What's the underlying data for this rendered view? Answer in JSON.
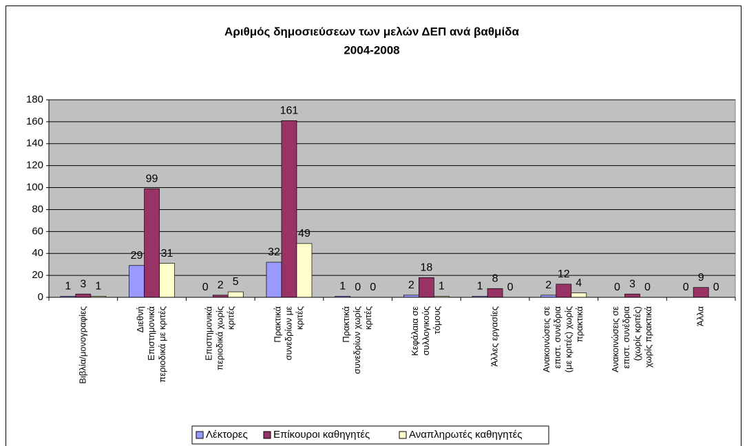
{
  "chart_data": {
    "type": "bar",
    "title": [
      "Αριθμός δημοσιεύσεων των μελών ΔΕΠ ανά βαθμίδα",
      "2004-2008"
    ],
    "categories": [
      [
        "Βιβλία/μονογραφίες"
      ],
      [
        "Διεθνή",
        "Επιστημονικά",
        "περιοδικά με κριτές"
      ],
      [
        "Επιστημονικά",
        "περιοδικά χωρίς",
        "κριτές"
      ],
      [
        "Πρακτικά",
        "συνεδρίων με",
        "κριτές"
      ],
      [
        "Πρακτικά",
        "συνεδρίων χωρίς",
        "κριτές"
      ],
      [
        "Κεφάλαια σε",
        "συλλογικούς",
        "τόμους"
      ],
      [
        "Άλλες εργασίες"
      ],
      [
        "Ανακοινώσεις σε",
        "επιστ. συνέδρια",
        "(με κριτές) χωρίς",
        "πρακτικά"
      ],
      [
        "Ανακοινώσεις σε",
        "επιστ. συνέδρια",
        "(χωρίς κριτές)",
        "χωρίς πρακτικά"
      ],
      [
        "Άλλα"
      ]
    ],
    "series": [
      {
        "name": "Λέκτορες",
        "color": "#9999ff",
        "values": [
          1,
          29,
          0,
          32,
          1,
          2,
          1,
          2,
          0,
          0
        ]
      },
      {
        "name": "Επίκουροι καθηγητές",
        "color": "#993366",
        "values": [
          3,
          99,
          2,
          161,
          0,
          18,
          8,
          12,
          3,
          9
        ]
      },
      {
        "name": "Αναπληρωτές καθηγητές",
        "color": "#ffffcc",
        "values": [
          1,
          31,
          5,
          49,
          0,
          1,
          0,
          4,
          0,
          0
        ]
      }
    ],
    "ylim": [
      0,
      180
    ],
    "yticks": [
      0,
      20,
      40,
      60,
      80,
      100,
      120,
      140,
      160,
      180
    ],
    "grid": true,
    "legend": "bottom"
  }
}
